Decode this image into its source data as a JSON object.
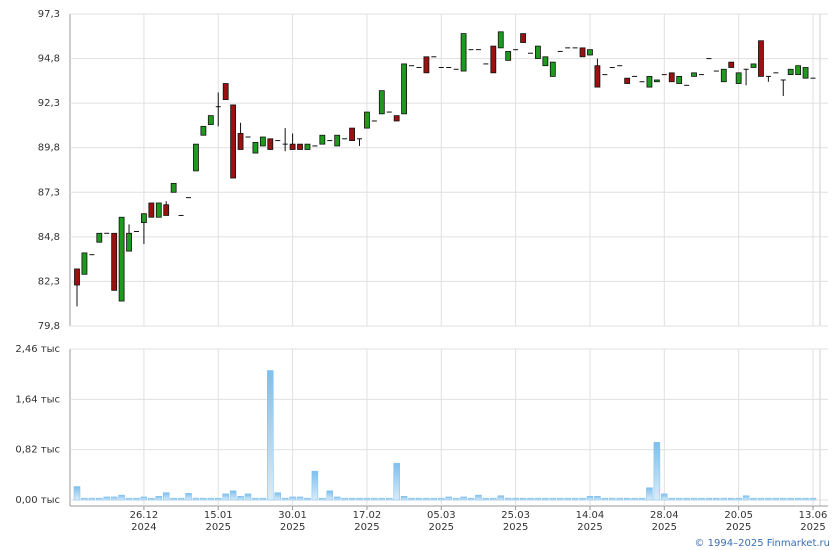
{
  "chart_data": {
    "type": "candlestick",
    "categories": [
      null,
      null,
      null,
      null,
      null,
      null,
      null,
      null,
      null,
      "26.12\n2024",
      null,
      null,
      null,
      null,
      null,
      null,
      null,
      null,
      null,
      "15.01\n2025",
      null,
      null,
      null,
      null,
      null,
      null,
      null,
      null,
      null,
      "30.01\n2025",
      null,
      null,
      null,
      null,
      null,
      null,
      null,
      null,
      null,
      "17.02\n2025",
      null,
      null,
      null,
      null,
      null,
      null,
      null,
      null,
      null,
      "05.03\n2025",
      null,
      null,
      null,
      null,
      null,
      null,
      null,
      null,
      null,
      "25.03\n2025",
      null,
      null,
      null,
      null,
      null,
      null,
      null,
      null,
      null,
      "14.04\n2025",
      null,
      null,
      null,
      null,
      null,
      null,
      null,
      null,
      null,
      "28.04\n2025",
      null,
      null,
      null,
      null,
      null,
      null,
      null,
      null,
      null,
      "20.05\n2025",
      null,
      null,
      null,
      null,
      null,
      null,
      null,
      null,
      null,
      "13.06\n2025"
    ],
    "open": [
      83.0,
      82.7,
      83.8,
      84.5,
      85.0,
      85.0,
      81.2,
      84.0,
      85.1,
      85.6,
      86.7,
      85.9,
      86.6,
      87.3,
      86.0,
      87.0,
      88.5,
      90.5,
      91.1,
      92.1,
      93.4,
      92.2,
      90.6,
      90.4,
      89.5,
      89.9,
      90.3,
      90.2,
      90.0,
      90.0,
      90.0,
      89.7,
      89.9,
      90.0,
      90.2,
      89.9,
      90.3,
      90.9,
      90.3,
      90.9,
      91.3,
      91.7,
      91.8,
      91.6,
      91.7,
      94.4,
      94.3,
      94.9,
      94.9,
      94.3,
      94.3,
      94.2,
      94.1,
      95.3,
      95.3,
      94.5,
      95.5,
      95.4,
      94.7,
      95.3,
      96.2,
      95.1,
      94.8,
      94.4,
      93.8,
      95.2,
      95.4,
      95.4,
      95.4,
      95.0,
      94.4,
      93.9,
      94.3,
      94.4,
      93.7,
      93.8,
      93.5,
      93.2,
      93.5,
      93.9,
      94.0,
      93.4,
      93.3,
      93.8,
      93.9,
      94.8,
      94.1,
      93.5,
      94.6,
      93.4,
      94.2,
      94.3,
      95.8,
      93.8,
      94.0,
      93.6,
      93.9,
      93.9,
      93.7,
      93.7
    ],
    "high": [
      83.0,
      83.9,
      83.8,
      85.0,
      85.0,
      85.0,
      85.9,
      85.5,
      85.1,
      86.1,
      86.7,
      86.7,
      86.8,
      87.8,
      86.0,
      87.0,
      90.0,
      91.0,
      91.6,
      92.9,
      93.4,
      92.2,
      91.2,
      90.4,
      90.1,
      90.4,
      90.3,
      90.2,
      90.9,
      90.6,
      90.0,
      90.0,
      89.9,
      90.5,
      90.2,
      90.5,
      90.3,
      90.9,
      90.3,
      91.8,
      91.3,
      93.0,
      91.8,
      91.6,
      94.5,
      94.4,
      94.3,
      94.9,
      94.9,
      94.3,
      94.3,
      94.2,
      96.2,
      95.3,
      95.3,
      94.5,
      95.5,
      96.3,
      95.2,
      95.3,
      96.2,
      95.1,
      95.5,
      94.9,
      94.6,
      95.2,
      95.4,
      95.4,
      95.4,
      95.3,
      94.8,
      93.9,
      94.3,
      94.4,
      93.7,
      93.8,
      93.5,
      93.8,
      93.6,
      93.9,
      94.0,
      93.8,
      93.3,
      94.0,
      93.9,
      94.8,
      94.1,
      94.2,
      94.6,
      94.0,
      94.2,
      94.5,
      95.8,
      93.8,
      94.0,
      93.6,
      94.2,
      94.4,
      94.3,
      93.7
    ],
    "low": [
      80.9,
      82.7,
      83.8,
      84.5,
      85.0,
      81.8,
      81.2,
      84.0,
      85.1,
      84.4,
      85.9,
      85.9,
      86.0,
      87.3,
      86.0,
      87.0,
      88.5,
      90.5,
      91.1,
      91.0,
      92.5,
      88.1,
      89.7,
      90.4,
      89.5,
      89.9,
      89.7,
      90.2,
      89.6,
      89.7,
      89.7,
      89.7,
      89.9,
      90.0,
      90.2,
      89.9,
      90.3,
      90.2,
      89.9,
      90.9,
      91.3,
      91.7,
      91.8,
      91.3,
      91.7,
      94.4,
      94.3,
      94.0,
      94.9,
      94.3,
      94.3,
      94.2,
      94.1,
      95.3,
      95.3,
      94.5,
      94.0,
      95.4,
      94.7,
      95.3,
      95.7,
      95.1,
      94.8,
      94.4,
      93.8,
      95.2,
      95.4,
      95.4,
      94.9,
      95.0,
      93.2,
      93.9,
      94.3,
      94.4,
      93.4,
      93.8,
      93.5,
      93.2,
      93.5,
      93.9,
      93.5,
      93.4,
      93.3,
      93.8,
      93.9,
      94.8,
      94.1,
      93.5,
      94.3,
      93.4,
      93.3,
      94.3,
      93.8,
      93.5,
      94.0,
      92.7,
      93.9,
      93.9,
      93.7,
      93.7
    ],
    "close": [
      82.1,
      83.9,
      83.8,
      85.0,
      85.0,
      81.8,
      85.9,
      85.0,
      85.1,
      86.1,
      85.9,
      86.7,
      86.0,
      87.8,
      86.0,
      87.0,
      90.0,
      91.0,
      91.6,
      92.1,
      92.5,
      88.1,
      89.7,
      90.4,
      90.1,
      90.4,
      89.7,
      90.2,
      90.0,
      89.7,
      89.7,
      90.0,
      89.9,
      90.5,
      90.2,
      90.5,
      90.3,
      90.2,
      90.3,
      91.8,
      91.3,
      93.0,
      91.8,
      91.3,
      94.5,
      94.4,
      94.3,
      94.0,
      94.9,
      94.3,
      94.3,
      94.2,
      96.2,
      95.3,
      95.3,
      94.5,
      94.0,
      96.3,
      95.2,
      95.3,
      95.7,
      95.1,
      95.5,
      94.9,
      94.6,
      95.2,
      95.4,
      95.4,
      94.9,
      95.3,
      93.2,
      93.9,
      94.3,
      94.4,
      93.4,
      93.8,
      93.5,
      93.8,
      93.6,
      93.9,
      93.5,
      93.8,
      93.3,
      94.0,
      93.9,
      94.8,
      94.1,
      94.2,
      94.3,
      94.0,
      94.2,
      94.5,
      93.8,
      93.8,
      94.0,
      93.6,
      94.2,
      94.4,
      94.3,
      93.7
    ],
    "up_color": "#1f9a1f",
    "down_color": "#9b1111",
    "ylim": [
      79.8,
      97.3
    ],
    "yticks": [
      {
        "value": 79.8,
        "label": "79,8"
      },
      {
        "value": 82.3,
        "label": "82,3"
      },
      {
        "value": 84.8,
        "label": "84,8"
      },
      {
        "value": 87.3,
        "label": "87,3"
      },
      {
        "value": 89.8,
        "label": "89,8"
      },
      {
        "value": 92.3,
        "label": "92,3"
      },
      {
        "value": 94.8,
        "label": "94,8"
      },
      {
        "value": 97.3,
        "label": "97,3"
      }
    ],
    "grid": true,
    "volume": {
      "values": [
        0.22,
        0.03,
        0.03,
        0.03,
        0.05,
        0.05,
        0.08,
        0.03,
        0.03,
        0.05,
        0.03,
        0.06,
        0.12,
        0.03,
        0.03,
        0.11,
        0.03,
        0.03,
        0.03,
        0.03,
        0.1,
        0.15,
        0.06,
        0.1,
        0.03,
        0.03,
        2.11,
        0.12,
        0.03,
        0.05,
        0.05,
        0.03,
        0.47,
        0.03,
        0.15,
        0.05,
        0.03,
        0.03,
        0.03,
        0.03,
        0.03,
        0.03,
        0.03,
        0.6,
        0.06,
        0.03,
        0.03,
        0.03,
        0.03,
        0.03,
        0.05,
        0.03,
        0.05,
        0.03,
        0.08,
        0.03,
        0.03,
        0.07,
        0.03,
        0.03,
        0.03,
        0.03,
        0.03,
        0.03,
        0.03,
        0.03,
        0.03,
        0.03,
        0.03,
        0.06,
        0.06,
        0.03,
        0.03,
        0.03,
        0.03,
        0.03,
        0.03,
        0.2,
        0.94,
        0.1,
        0.03,
        0.03,
        0.03,
        0.03,
        0.03,
        0.03,
        0.03,
        0.03,
        0.03,
        0.03,
        0.07,
        0.03,
        0.03,
        0.03,
        0.03,
        0.03,
        0.03,
        0.03,
        0.03,
        0.03
      ],
      "color": "#7dbfee",
      "ylim": [
        0,
        2.46
      ],
      "yticks": [
        {
          "value": 0,
          "label": "0,00 тыс"
        },
        {
          "value": 0.82,
          "label": "0,82 тыс"
        },
        {
          "value": 1.64,
          "label": "1,64 тыс"
        },
        {
          "value": 2.46,
          "label": "2,46 тыс"
        }
      ]
    }
  },
  "footer": "© 1994–2025 Finmarket.ru"
}
